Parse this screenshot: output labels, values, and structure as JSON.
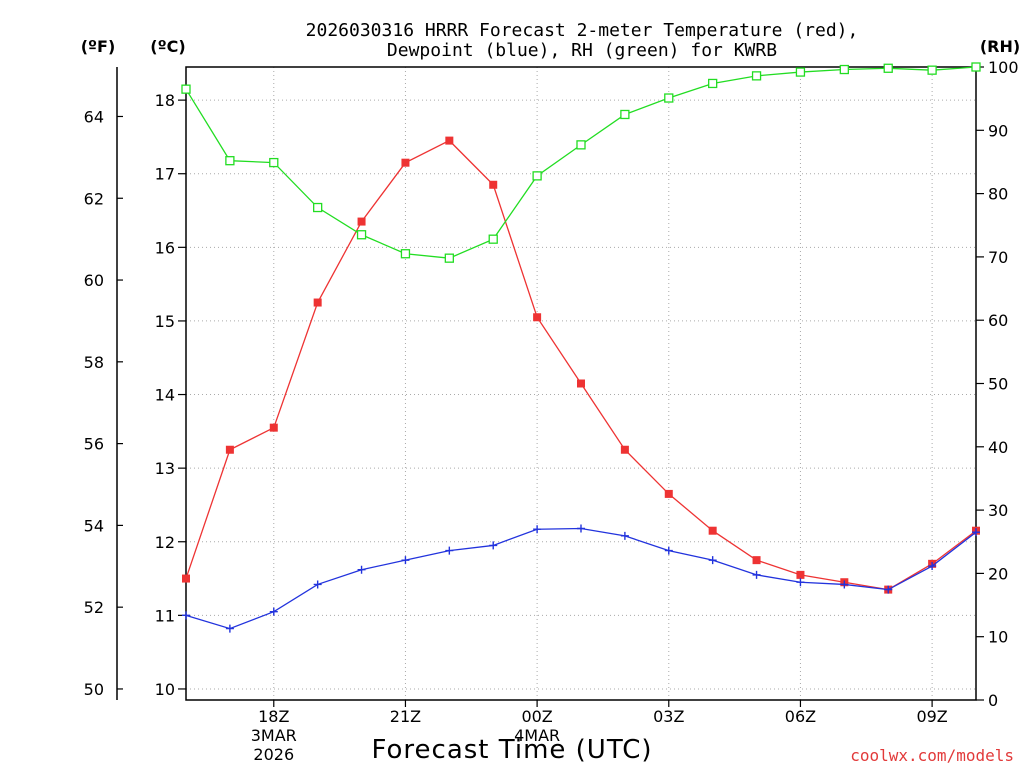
{
  "chart_data": {
    "type": "line",
    "title_lines": [
      "2026030316 HRRR Forecast 2-meter Temperature (red),",
      "Dewpoint (blue), RH (green) for KWRB"
    ],
    "xlabel": "Forecast Time (UTC)",
    "credit": "coolwx.com/models",
    "units": {
      "fahrenheit": "(ºF)",
      "celsius": "(ºC)",
      "rh": "(RH)"
    },
    "x_hours": [
      16,
      17,
      18,
      19,
      20,
      21,
      22,
      23,
      24,
      25,
      26,
      27,
      28,
      29,
      30,
      31,
      32,
      33,
      34
    ],
    "x_range": [
      16,
      34
    ],
    "x_ticks": [
      {
        "hour": 18,
        "label": "18Z",
        "date": "3MAR",
        "year": "2026"
      },
      {
        "hour": 21,
        "label": "21Z",
        "date": "",
        "year": ""
      },
      {
        "hour": 24,
        "label": "00Z",
        "date": "4MAR",
        "year": ""
      },
      {
        "hour": 27,
        "label": "03Z",
        "date": "",
        "year": ""
      },
      {
        "hour": 30,
        "label": "06Z",
        "date": "",
        "year": ""
      },
      {
        "hour": 33,
        "label": "09Z",
        "date": "",
        "year": ""
      }
    ],
    "celsius_range": [
      9.85,
      18.45
    ],
    "celsius_ticks": [
      "10",
      "11",
      "12",
      "13",
      "14",
      "15",
      "16",
      "17",
      "18"
    ],
    "fahrenheit_ticks": [
      "50",
      "52",
      "54",
      "56",
      "58",
      "60",
      "62",
      "64"
    ],
    "rh_range": [
      0,
      100
    ],
    "rh_ticks": [
      "0",
      "10",
      "20",
      "30",
      "40",
      "50",
      "60",
      "70",
      "80",
      "90",
      "100"
    ],
    "series": [
      {
        "name": "Temperature",
        "units": "C",
        "color": "#ee3333",
        "marker": "filled-square",
        "values": [
          11.5,
          13.25,
          13.55,
          15.25,
          16.35,
          17.15,
          17.45,
          16.85,
          15.05,
          14.15,
          13.25,
          12.65,
          12.15,
          11.75,
          11.55,
          11.45,
          11.35,
          11.7,
          12.15
        ]
      },
      {
        "name": "Dewpoint",
        "units": "C",
        "color": "#2233dd",
        "marker": "plus",
        "values": [
          11.0,
          10.82,
          11.05,
          11.42,
          11.62,
          11.75,
          11.88,
          11.95,
          12.17,
          12.18,
          12.08,
          11.88,
          11.75,
          11.55,
          11.45,
          11.42,
          11.35,
          11.67,
          12.13
        ]
      },
      {
        "name": "RH",
        "units": "%",
        "color": "#22dd22",
        "marker": "open-square",
        "values": [
          96.5,
          85.2,
          84.9,
          77.8,
          73.5,
          70.5,
          69.8,
          72.8,
          82.8,
          87.7,
          92.5,
          95.1,
          97.4,
          98.6,
          99.2,
          99.6,
          99.8,
          99.5,
          100.0
        ]
      }
    ]
  }
}
